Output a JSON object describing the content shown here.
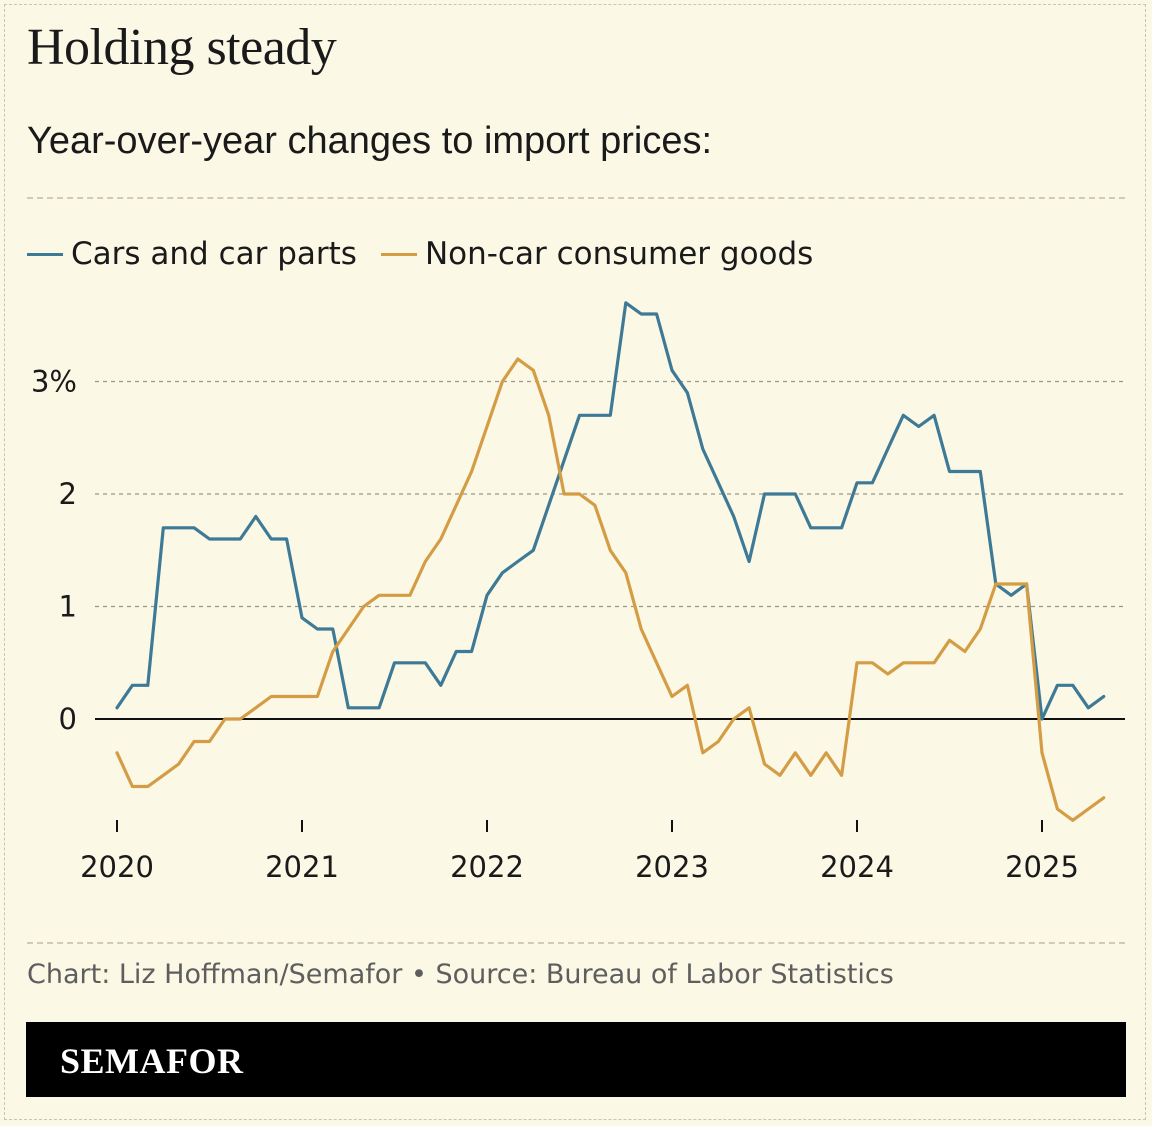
{
  "header": {
    "title": "Holding steady",
    "subtitle": "Year-over-year changes to import prices:"
  },
  "footer": {
    "source": "Chart: Liz Hoffman/Semafor • Source: Bureau of Labor Statistics",
    "brand": "SEMAFOR"
  },
  "colors": {
    "background": "#fbf8e6",
    "cars": "#3e7a96",
    "noncar": "#d49d45",
    "brandbar": "#000000"
  },
  "chart_data": {
    "type": "line",
    "title": "Holding steady",
    "subtitle": "Year-over-year changes to import prices:",
    "xlabel": "",
    "ylabel": "",
    "x_start": "2020-01",
    "x_frequency": "monthly",
    "xlim": [
      2020.0,
      2025.5
    ],
    "ylim": [
      -1.0,
      3.8
    ],
    "yticks": [
      0,
      1,
      2,
      3
    ],
    "ytick_labels": [
      "0",
      "1",
      "2",
      "3%"
    ],
    "xticks": [
      2020,
      2021,
      2022,
      2023,
      2024,
      2025
    ],
    "xtick_labels": [
      "2020",
      "2021",
      "2022",
      "2023",
      "2024",
      "2025"
    ],
    "grid": true,
    "legend": "top-left",
    "series": [
      {
        "name": "Cars and car parts",
        "color": "#3e7a96",
        "values": [
          0.1,
          0.3,
          0.3,
          1.7,
          1.7,
          1.7,
          1.6,
          1.6,
          1.6,
          1.8,
          1.6,
          1.6,
          0.9,
          0.8,
          0.8,
          0.1,
          0.1,
          0.1,
          0.5,
          0.5,
          0.5,
          0.3,
          0.6,
          0.6,
          1.1,
          1.3,
          1.4,
          1.5,
          1.9,
          2.3,
          2.7,
          2.7,
          2.7,
          3.7,
          3.6,
          3.6,
          3.1,
          2.9,
          2.4,
          2.1,
          1.8,
          1.4,
          2.0,
          2.0,
          2.0,
          1.7,
          1.7,
          1.7,
          2.1,
          2.1,
          2.4,
          2.7,
          2.6,
          2.7,
          2.2,
          2.2,
          2.2,
          1.2,
          1.1,
          1.2,
          0.0,
          0.3,
          0.3,
          0.1,
          0.2
        ]
      },
      {
        "name": "Non-car consumer goods",
        "color": "#d49d45",
        "values": [
          -0.3,
          -0.6,
          -0.6,
          -0.5,
          -0.4,
          -0.2,
          -0.2,
          0.0,
          0.0,
          0.1,
          0.2,
          0.2,
          0.2,
          0.2,
          0.6,
          0.8,
          1.0,
          1.1,
          1.1,
          1.1,
          1.4,
          1.6,
          1.9,
          2.2,
          2.6,
          3.0,
          3.2,
          3.1,
          2.7,
          2.0,
          2.0,
          1.9,
          1.5,
          1.3,
          0.8,
          0.5,
          0.2,
          0.3,
          -0.3,
          -0.2,
          0.0,
          0.1,
          -0.4,
          -0.5,
          -0.3,
          -0.5,
          -0.3,
          -0.5,
          0.5,
          0.5,
          0.4,
          0.5,
          0.5,
          0.5,
          0.7,
          0.6,
          0.8,
          1.2,
          1.2,
          1.2,
          -0.3,
          -0.8,
          -0.9,
          -0.8,
          -0.7
        ]
      }
    ]
  }
}
